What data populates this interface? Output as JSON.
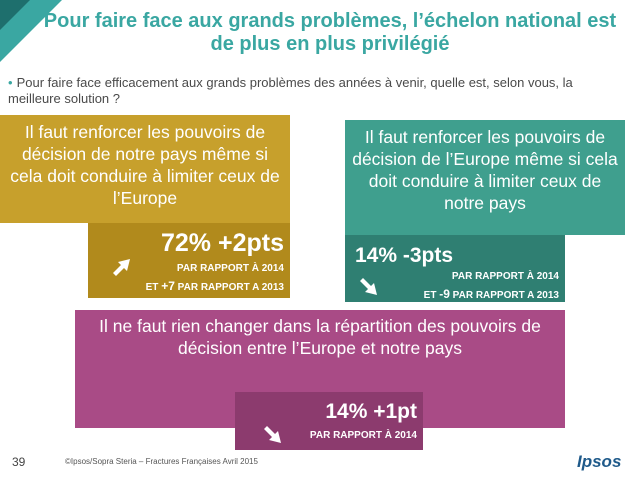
{
  "title": "Pour faire face aux grands problèmes, l’échelon national est de plus en plus privilégié",
  "question": {
    "bullet": "•",
    "text": "Pour faire face efficacement aux grands problèmes des années à venir, quelle est, selon vous, la meilleure solution ?"
  },
  "options": {
    "national": {
      "text": "Il faut renforcer les pouvoirs de décision de notre pays même si cela doit conduire à limiter ceux de l’Europe",
      "stat": "72% +2pts",
      "line1": "PAR RAPPORT À 2014",
      "line2_prefix": "ET ",
      "line2_value": "+7",
      "line2_suffix": " PAR RAPPORT A 2013",
      "color": "#c7a02c",
      "stat_color": "#b18a1c",
      "arrow": "arrow-up-right-icon"
    },
    "europe": {
      "text": "Il faut renforcer les pouvoirs de décision de l’Europe même si cela doit conduire à limiter ceux de notre pays",
      "stat": "14% -3pts",
      "line1": "PAR RAPPORT À 2014",
      "line2_prefix": "ET ",
      "line2_value": "-9",
      "line2_suffix": " PAR RAPPORT A 2013",
      "color": "#3f9f8e",
      "stat_color": "#2f7f72",
      "arrow": "arrow-down-right-icon"
    },
    "unchanged": {
      "text": "Il ne faut rien changer dans la répartition des pouvoirs de décision entre l’Europe et notre pays",
      "stat": "14% +1pt",
      "line1": "PAR RAPPORT À 2014",
      "color": "#a94b86",
      "stat_color": "#8c3b6e",
      "arrow": "arrow-down-right-icon"
    }
  },
  "footer": {
    "page": "39",
    "copyright": "©Ipsos/Sopra Steria –  Fractures Françaises  Avril 2015",
    "logo": "Ipsos"
  },
  "colors": {
    "teal": "#3aa7a2",
    "dark_teal": "#1e6f6d"
  }
}
